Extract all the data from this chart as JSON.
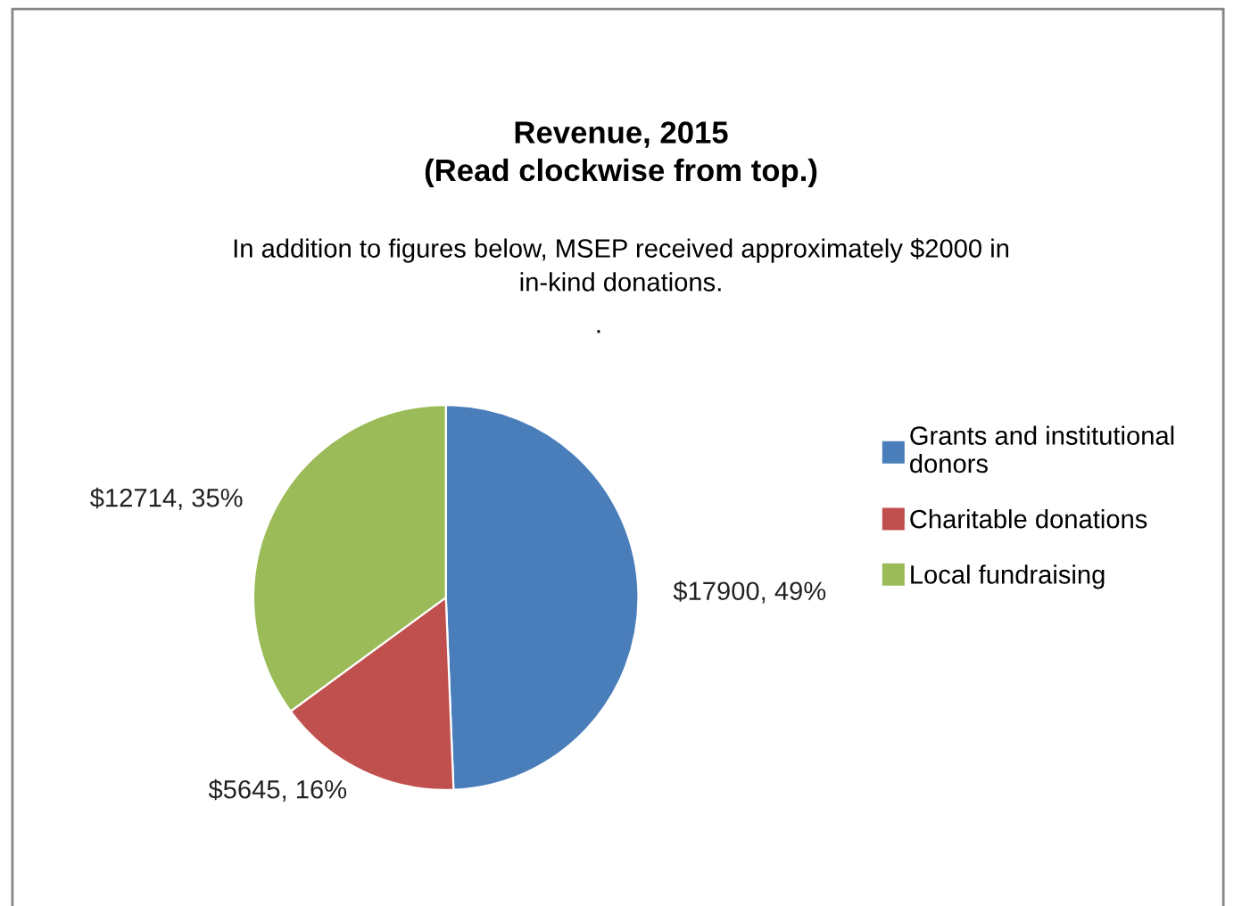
{
  "chart_data": {
    "type": "pie",
    "title": "Revenue, 2015\n(Read clockwise from top.)",
    "annotations": [
      "In addition to figures below, MSEP received approximately $2000 in\nin-kind donations.",
      "."
    ],
    "categories": [
      "Grants and institutional\ndonors",
      "Charitable donations",
      "Local fundraising"
    ],
    "values": [
      17900,
      5645,
      12714
    ],
    "colors": [
      "#4a7ebb",
      "#c0504d",
      "#9bbb59"
    ],
    "value_labels": [
      "$17900, 49%",
      "$5645, 16%",
      "$12714, 35%"
    ],
    "legend": "right"
  }
}
